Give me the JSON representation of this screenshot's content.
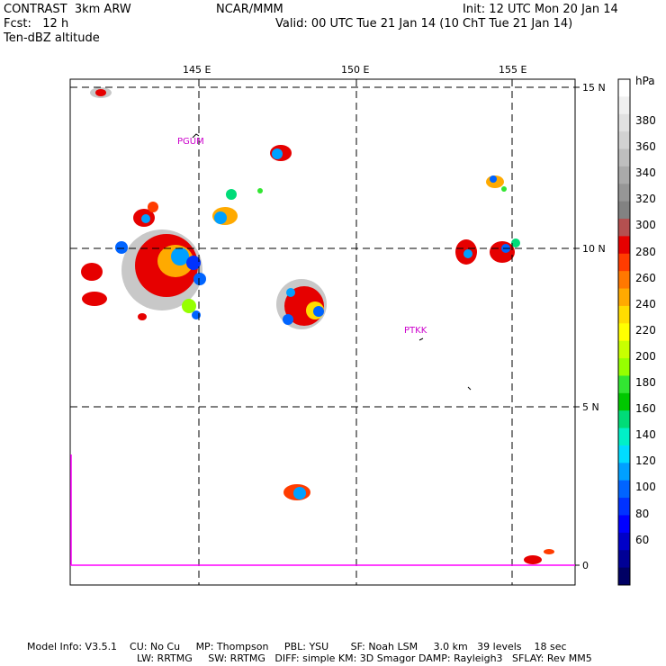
{
  "header": {
    "left_line1": "CONTRAST  3km ARW",
    "left_line2": "Fcst:   12 h",
    "left_line3": "Ten-dBZ altitude",
    "center": "NCAR/MMM",
    "right_line1": "Init: 12 UTC Mon 20 Jan 14",
    "right_line2": "Valid: 00 UTC Tue 21 Jan 14 (10 ChT Tue 21 Jan 14)"
  },
  "map": {
    "lon_labels": [
      "145 E",
      "150 E",
      "155 E"
    ],
    "lat_labels": [
      "15 N",
      "10 N",
      "5 N",
      "0"
    ],
    "stations": [
      "PGUM",
      "PTKK"
    ]
  },
  "colorbar": {
    "unit": "hPa",
    "labels": [
      "380",
      "360",
      "340",
      "320",
      "300",
      "280",
      "260",
      "240",
      "220",
      "200",
      "180",
      "160",
      "140",
      "120",
      "100",
      "80",
      "60"
    ],
    "colors": [
      "#ffffff",
      "#f0f0f0",
      "#e1e1e1",
      "#d2d2d2",
      "#bebebe",
      "#aaaaaa",
      "#969696",
      "#828282",
      "#b45050",
      "#e60000",
      "#ff3c00",
      "#ff7800",
      "#ffaa00",
      "#ffdc00",
      "#ffff00",
      "#c8ff00",
      "#96ff00",
      "#32e632",
      "#00c800",
      "#00dc78",
      "#00f0c8",
      "#00dcff",
      "#00a0ff",
      "#0064ff",
      "#0032ff",
      "#0000ff",
      "#0000c8",
      "#000096",
      "#000064"
    ]
  },
  "footer": {
    "line1": "Model Info: V3.5.1    CU: No Cu     MP: Thompson     PBL: YSU       SF: Noah LSM     3.0 km   39 levels    18 sec",
    "line2": "LW: RRTMG     SW: RRTMG   DIFF: simple KM: 3D Smagor DAMP: Rayleigh3   SFLAY: Rev MM5"
  }
}
